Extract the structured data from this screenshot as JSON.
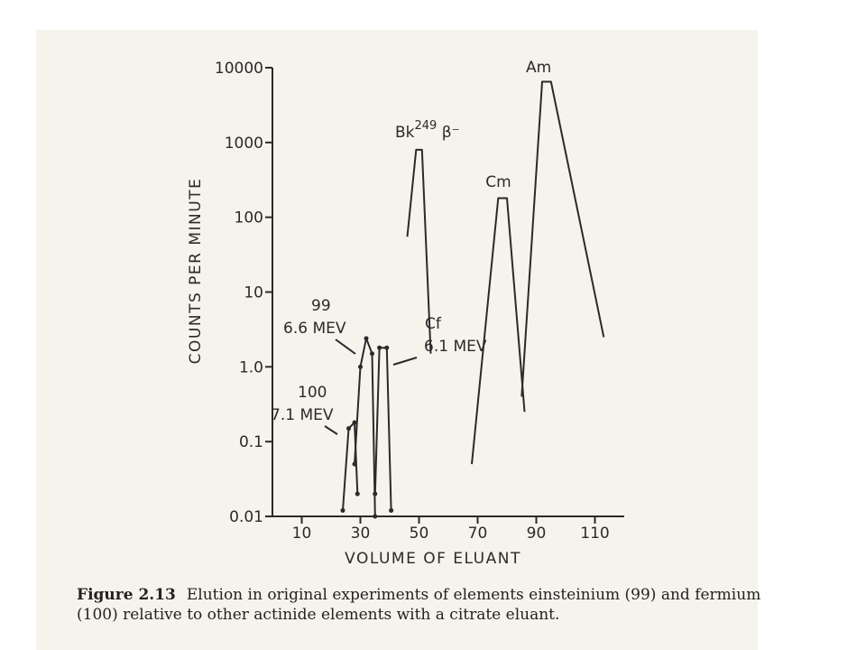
{
  "chart_data": {
    "type": "line",
    "title": "",
    "xlabel": "VOLUME OF ELUANT",
    "ylabel": "COUNTS PER MINUTE",
    "x_ticks": [
      "10",
      "30",
      "50",
      "70",
      "90",
      "110"
    ],
    "y_ticks": [
      "10000",
      "1000",
      "100",
      "10",
      "1.0",
      "0.1",
      "0.01"
    ],
    "y_scale": "log",
    "xlim": [
      0,
      120
    ],
    "ylim": [
      0.01,
      10000
    ],
    "series": [
      {
        "name": "Am",
        "points": [
          [
            85,
            0.4
          ],
          [
            92,
            6500
          ],
          [
            95,
            6500
          ],
          [
            113,
            2.5
          ]
        ]
      },
      {
        "name": "Cm",
        "points": [
          [
            68,
            0.05
          ],
          [
            77,
            180
          ],
          [
            80,
            180
          ],
          [
            86,
            0.25
          ]
        ]
      },
      {
        "name": "Bk",
        "points": [
          [
            46,
            55
          ],
          [
            49,
            800
          ],
          [
            51,
            800
          ],
          [
            54,
            1.5
          ]
        ]
      },
      {
        "name": "Cf",
        "points": [
          [
            35,
            0.02
          ],
          [
            36.5,
            1.8
          ],
          [
            39,
            1.8
          ],
          [
            40.5,
            0.012
          ]
        ]
      },
      {
        "name": "99",
        "points": [
          [
            28,
            0.05
          ],
          [
            30,
            1.0
          ],
          [
            32,
            2.4
          ],
          [
            34,
            1.5
          ],
          [
            35,
            0.01
          ]
        ]
      },
      {
        "name": "100",
        "points": [
          [
            24,
            0.012
          ],
          [
            26,
            0.15
          ],
          [
            28,
            0.18
          ],
          [
            29,
            0.02
          ]
        ]
      }
    ],
    "peak_labels": [
      {
        "name": "Am",
        "text": "Am"
      },
      {
        "name": "Cm",
        "text": "Cm"
      },
      {
        "name": "Bk",
        "text": "Bk",
        "superscript": "249",
        "suffix": "β⁻"
      },
      {
        "name": "Cf",
        "text": "Cf",
        "energy": "6.1 MEV"
      },
      {
        "name": "99",
        "text": "99",
        "energy": "6.6 MEV"
      },
      {
        "name": "100",
        "text": "100",
        "energy": "7.1 MEV"
      }
    ]
  },
  "caption": {
    "figure_number": "Figure 2.13",
    "text": "Elution in original experiments of elements einsteinium (99) and fermium (100) relative to other actinide elements with a citrate eluant."
  }
}
